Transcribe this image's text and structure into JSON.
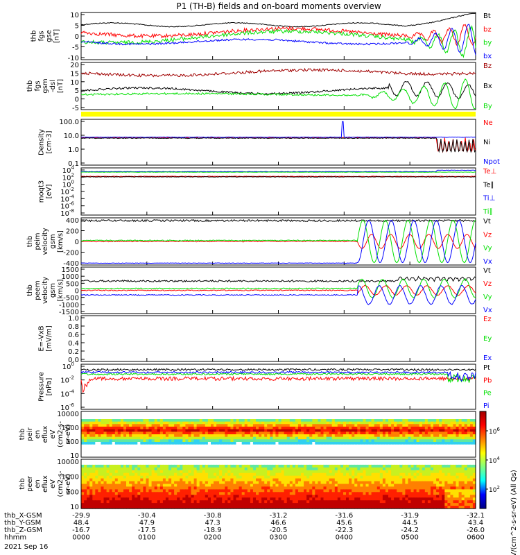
{
  "title": "P1 (TH-B) fields and on-board moments overview",
  "colors": {
    "black": "#000000",
    "red": "#ff0000",
    "green": "#00e000",
    "blue": "#0000ff",
    "darkred": "#a00000",
    "yellow": "#ffff00"
  },
  "footer": {
    "rows": [
      {
        "label": "thb_X-GSM",
        "values": [
          "-29.9",
          "-30.4",
          "-30.8",
          "-31.2",
          "-31.6",
          "-31.9",
          "-32.1"
        ]
      },
      {
        "label": "thb_Y-GSM",
        "values": [
          "48.4",
          "47.9",
          "47.3",
          "46.6",
          "45.6",
          "44.5",
          "43.4"
        ]
      },
      {
        "label": "thb_Z-GSM",
        "values": [
          "-16.7",
          "-17.5",
          "-18.9",
          "-20.5",
          "-22.3",
          "-24.2",
          "-26.0"
        ]
      },
      {
        "label": "hhmm",
        "values": [
          "0000",
          "0100",
          "0200",
          "0300",
          "0400",
          "0500",
          "0600"
        ]
      }
    ],
    "date": "2021 Sep 16"
  },
  "colorbar": {
    "title": "eV/(cm^2-s-sr-eV) (All Qs)",
    "ticks": [
      {
        "label": "10",
        "exp": "2",
        "frac": 0.2
      },
      {
        "label": "10",
        "exp": "4",
        "frac": 0.5
      },
      {
        "label": "10",
        "exp": "6",
        "frac": 0.8
      }
    ]
  },
  "chart_data": [
    {
      "id": "fgs_gse",
      "type": "line",
      "ylabel": [
        "thb",
        "fgs",
        "gse",
        "[nT]"
      ],
      "ylim": [
        -10,
        10
      ],
      "yticks": [
        "10",
        "5",
        "0",
        "-5",
        "-10"
      ],
      "series": [
        {
          "name": "Bt",
          "color": "black"
        },
        {
          "name": "bz",
          "color": "red"
        },
        {
          "name": "by",
          "color": "green"
        },
        {
          "name": "bx",
          "color": "blue"
        }
      ]
    },
    {
      "id": "fgs_gsm",
      "type": "line",
      "ylabel": [
        "thb",
        "fgs",
        "gsm",
        "-dsl",
        "[nT]"
      ],
      "ylim": [
        -8,
        24
      ],
      "yticks": [
        "20",
        "15",
        "10",
        "5",
        "0",
        "-5"
      ],
      "series": [
        {
          "name": "Bz",
          "color": "darkred"
        },
        {
          "name": "Bx",
          "color": "black"
        },
        {
          "name": "By",
          "color": "green"
        }
      ]
    },
    {
      "id": "density",
      "type": "line",
      "scale": "log",
      "ylabel": [
        "Density",
        "[cm-3]"
      ],
      "ylim": [
        0.01,
        200
      ],
      "yticks": [
        "100.0",
        "10.0",
        "1.0",
        "0.1"
      ],
      "series": [
        {
          "name": "Ne",
          "color": "red"
        },
        {
          "name": "Ni",
          "color": "black"
        },
        {
          "name": "Npot",
          "color": "blue"
        }
      ]
    },
    {
      "id": "temperature",
      "type": "line",
      "scale": "log",
      "ylabel": [
        "moqt3",
        "[eV]"
      ],
      "yticks": [
        "10",
        "10",
        "10",
        "10",
        "10",
        "10",
        "10"
      ],
      "yexps": [
        "4",
        "2",
        "0",
        "-2",
        "-4",
        "-6",
        "-8"
      ],
      "series": [
        {
          "name": "Te⊥",
          "color": "red"
        },
        {
          "name": "Te∥",
          "color": "black"
        },
        {
          "name": "Ti⊥",
          "color": "blue"
        },
        {
          "name": "Ti∥",
          "color": "green"
        }
      ]
    },
    {
      "id": "peim",
      "type": "line",
      "ylabel": [
        "thb",
        "peim",
        "velocity",
        "gsm",
        "[km/s]"
      ],
      "ylim": [
        -420,
        420
      ],
      "yticks": [
        "400",
        "200",
        "0",
        "-200",
        "-400"
      ],
      "series": [
        {
          "name": "Vt",
          "color": "black"
        },
        {
          "name": "Vz",
          "color": "red"
        },
        {
          "name": "Vy",
          "color": "green"
        },
        {
          "name": "Vx",
          "color": "blue"
        }
      ]
    },
    {
      "id": "peem",
      "type": "line",
      "ylabel": [
        "thb",
        "peem",
        "velocity",
        "gsm",
        "[km/s]"
      ],
      "ylim": [
        -1500,
        1500
      ],
      "yticks": [
        "1500",
        "1000",
        "500",
        "0",
        "-500",
        "-1000",
        "-1500"
      ],
      "series": [
        {
          "name": "Vt",
          "color": "black"
        },
        {
          "name": "Vz",
          "color": "red"
        },
        {
          "name": "Vy",
          "color": "green"
        },
        {
          "name": "Vx",
          "color": "blue"
        }
      ]
    },
    {
      "id": "efield",
      "type": "line",
      "ylabel": [
        "E=-VxB",
        "[mV/m]"
      ],
      "ylim": [
        0,
        1
      ],
      "yticks": [
        "1.0",
        "0.8",
        "0.6",
        "0.4",
        "0.2",
        "0.0"
      ],
      "series": [
        {
          "name": "Ez",
          "color": "red"
        },
        {
          "name": "Ey",
          "color": "green"
        },
        {
          "name": "Ex",
          "color": "blue"
        }
      ]
    },
    {
      "id": "pressure",
      "type": "line",
      "scale": "log",
      "ylabel": [
        "Pressure",
        "[nPa]"
      ],
      "yticks": [
        "10",
        "10",
        "10",
        "10"
      ],
      "yexps": [
        "0",
        "-2",
        "-4",
        "-6"
      ],
      "series": [
        {
          "name": "Pt",
          "color": "black"
        },
        {
          "name": "Pb",
          "color": "red"
        },
        {
          "name": "Pe",
          "color": "green"
        },
        {
          "name": "Pi",
          "color": "blue"
        }
      ]
    },
    {
      "id": "peir",
      "type": "heatmap",
      "ylabel": [
        "thb",
        "peir",
        "en",
        "eflux",
        "eV",
        "(cm2-s-",
        "sr-eV)"
      ],
      "yticks": [
        "10000",
        "1000",
        "100",
        "10"
      ]
    },
    {
      "id": "peer",
      "type": "heatmap",
      "ylabel": [
        "thb",
        "peer",
        "en",
        "eflux",
        "eV",
        "(cm2-s-",
        "sr-eV)"
      ],
      "yticks": [
        "10000",
        "1000",
        "100",
        "10"
      ]
    }
  ]
}
